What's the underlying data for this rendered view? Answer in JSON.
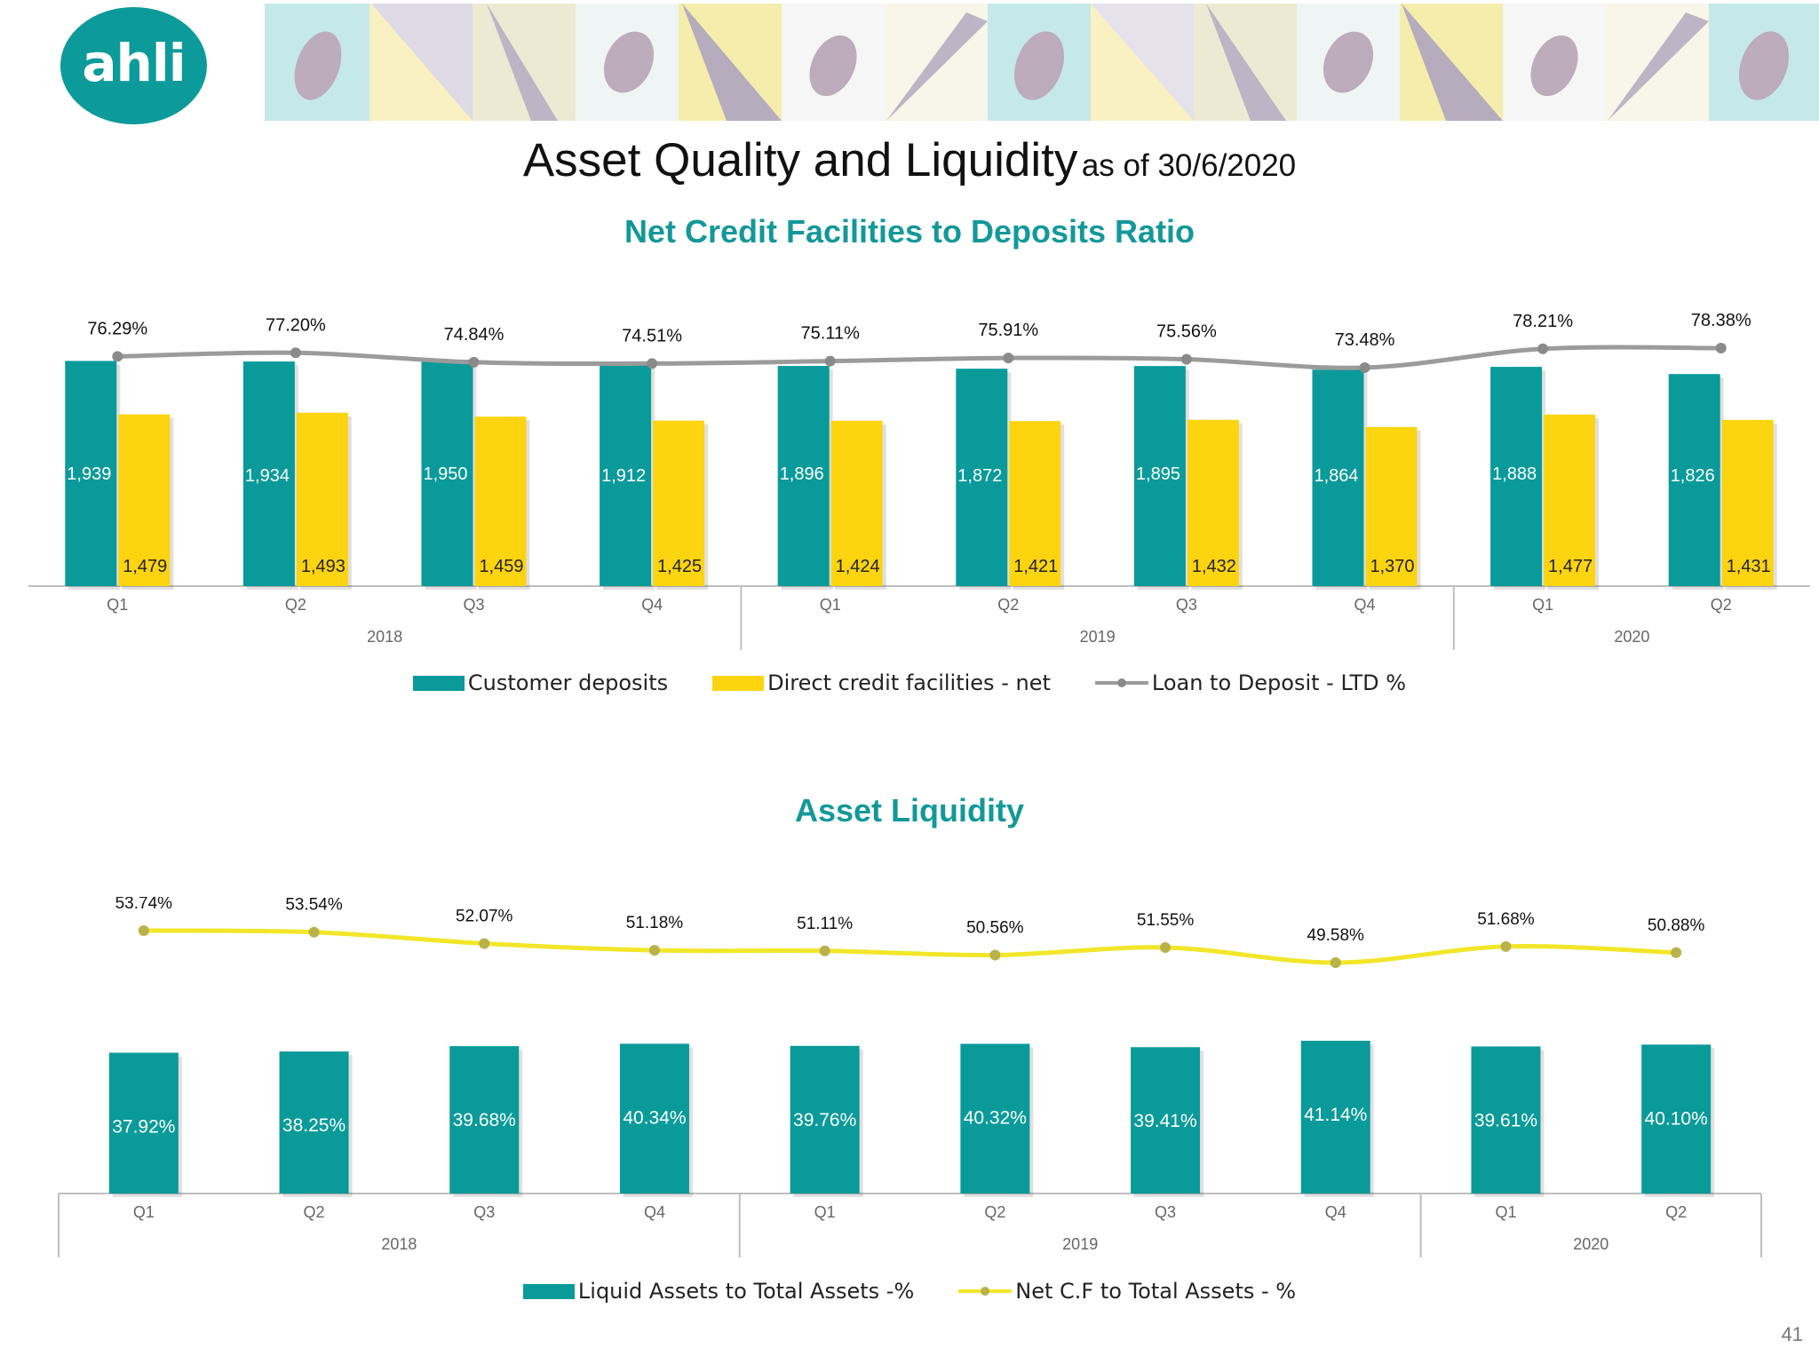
{
  "logo": {
    "text": "ahli",
    "color": "#0d9a9a"
  },
  "title": {
    "main": "Asset Quality and Liquidity",
    "sub": "as of 30/6/2020"
  },
  "page_number": "41",
  "colors": {
    "teal": "#0a9a9a",
    "yellow": "#fcd410",
    "gray_line": "#9b9b9b",
    "yellow_line": "#f2e629"
  },
  "chart_data": [
    {
      "type": "bar",
      "title": "Net Credit Facilities to Deposits Ratio",
      "categories": [
        "Q1",
        "Q2",
        "Q3",
        "Q4",
        "Q1",
        "Q2",
        "Q3",
        "Q4",
        "Q1",
        "Q2"
      ],
      "groups": [
        {
          "label": "2018",
          "count": 4
        },
        {
          "label": "2019",
          "count": 4
        },
        {
          "label": "2020",
          "count": 2
        }
      ],
      "series": [
        {
          "name": "Customer deposits",
          "kind": "bar",
          "values": [
            1939,
            1934,
            1950,
            1912,
            1896,
            1872,
            1895,
            1864,
            1888,
            1826
          ],
          "labels": [
            "1,939",
            "1,934",
            "1,950",
            "1,912",
            "1,896",
            "1,872",
            "1,895",
            "1,864",
            "1,888",
            "1,826"
          ]
        },
        {
          "name": "Direct credit facilities - net",
          "kind": "bar",
          "values": [
            1479,
            1493,
            1459,
            1425,
            1424,
            1421,
            1432,
            1370,
            1477,
            1431
          ],
          "labels": [
            "1,479",
            "1,493",
            "1,459",
            "1,425",
            "1,424",
            "1,421",
            "1,432",
            "1,370",
            "1,477",
            "1,431"
          ]
        },
        {
          "name": "Loan to Deposit - LTD %",
          "kind": "line",
          "values": [
            76.29,
            77.2,
            74.84,
            74.51,
            75.11,
            75.91,
            75.56,
            73.48,
            78.21,
            78.38
          ],
          "labels": [
            "76.29%",
            "77.20%",
            "74.84%",
            "74.51%",
            "75.11%",
            "75.91%",
            "75.56%",
            "73.48%",
            "78.21%",
            "78.38%"
          ]
        }
      ],
      "ylim_bars": [
        0,
        2000
      ],
      "ylim_line": [
        60,
        82
      ]
    },
    {
      "type": "bar",
      "title": "Asset Liquidity",
      "categories": [
        "Q1",
        "Q2",
        "Q3",
        "Q4",
        "Q1",
        "Q2",
        "Q3",
        "Q4",
        "Q1",
        "Q2"
      ],
      "groups": [
        {
          "label": "2018",
          "count": 4
        },
        {
          "label": "2019",
          "count": 4
        },
        {
          "label": "2020",
          "count": 2
        }
      ],
      "series": [
        {
          "name": "Liquid Assets to Total Assets -%",
          "kind": "bar",
          "values": [
            37.92,
            38.25,
            39.68,
            40.34,
            39.76,
            40.32,
            39.41,
            41.14,
            39.61,
            40.1
          ],
          "labels": [
            "37.92%",
            "38.25%",
            "39.68%",
            "40.34%",
            "39.76%",
            "40.32%",
            "39.41%",
            "41.14%",
            "39.61%",
            "40.10%"
          ]
        },
        {
          "name": "Net C.F to Total Assets - %",
          "kind": "line",
          "values": [
            53.74,
            53.54,
            52.07,
            51.18,
            51.11,
            50.56,
            51.55,
            49.58,
            51.68,
            50.88
          ],
          "labels": [
            "53.74%",
            "53.54%",
            "52.07%",
            "51.18%",
            "51.11%",
            "50.56%",
            "51.55%",
            "49.58%",
            "51.68%",
            "50.88%"
          ]
        }
      ],
      "ylim_bars": [
        0,
        48
      ],
      "ylim_line": [
        10,
        58
      ]
    }
  ]
}
